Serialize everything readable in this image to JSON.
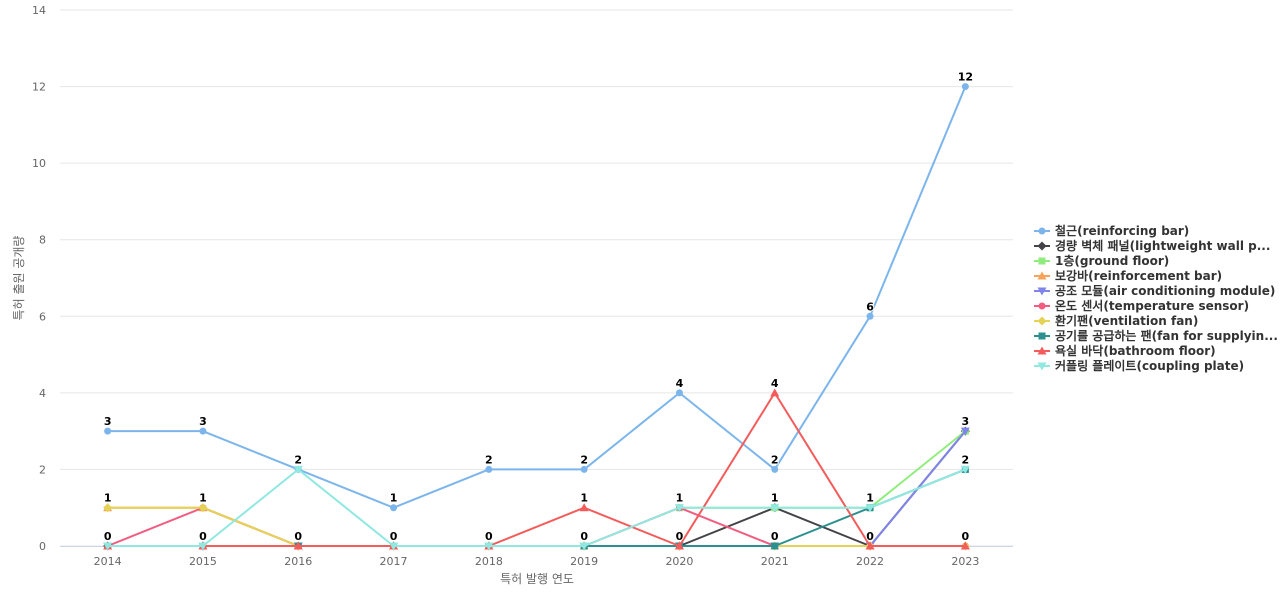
{
  "chart_data": {
    "type": "line",
    "title": "",
    "xlabel": "특허 발행 연도",
    "ylabel": "특허 출원 공개량",
    "ylim": [
      0,
      14
    ],
    "yticks": [
      0,
      2,
      4,
      6,
      8,
      10,
      12,
      14
    ],
    "grid": true,
    "legend_position": "right",
    "categories": [
      "2014",
      "2015",
      "2016",
      "2017",
      "2018",
      "2019",
      "2020",
      "2021",
      "2022",
      "2023"
    ],
    "series": [
      {
        "name": "철근(reinforcing bar)",
        "color": "#7cb5ec",
        "marker": "circle",
        "values": [
          3,
          3,
          2,
          1,
          2,
          2,
          4,
          2,
          6,
          12
        ]
      },
      {
        "name": "경량 벽체 패널(lightweight wall p...",
        "color": "#434348",
        "marker": "diamond",
        "values": [
          0,
          0,
          0,
          0,
          0,
          0,
          0,
          1,
          0,
          3
        ]
      },
      {
        "name": "1층(ground floor)",
        "color": "#90ed7d",
        "marker": "square",
        "values": [
          0,
          0,
          0,
          0,
          0,
          0,
          1,
          1,
          1,
          3
        ]
      },
      {
        "name": "보강바(reinforcement bar)",
        "color": "#f7a35c",
        "marker": "triangle",
        "values": [
          1,
          1,
          0,
          0,
          0,
          0,
          0,
          0,
          0,
          0
        ]
      },
      {
        "name": "공조 모듈(air conditioning module)",
        "color": "#8085e9",
        "marker": "triangle-down",
        "values": [
          0,
          0,
          0,
          0,
          0,
          0,
          0,
          0,
          0,
          3
        ]
      },
      {
        "name": "온도 센서(temperature sensor)",
        "color": "#f15c80",
        "marker": "circle",
        "values": [
          0,
          1,
          0,
          0,
          0,
          0,
          1,
          0,
          0,
          0
        ]
      },
      {
        "name": "환기팬(ventilation fan)",
        "color": "#e4d354",
        "marker": "diamond",
        "values": [
          1,
          1,
          0,
          0,
          0,
          0,
          0,
          0,
          0,
          0
        ]
      },
      {
        "name": "공기를 공급하는 팬(fan for supplyin...",
        "color": "#2b908f",
        "marker": "square",
        "values": [
          0,
          0,
          0,
          0,
          0,
          0,
          0,
          0,
          1,
          2
        ]
      },
      {
        "name": "욕실 바닥(bathroom floor)",
        "color": "#f45b5b",
        "marker": "triangle",
        "values": [
          0,
          0,
          0,
          0,
          0,
          1,
          0,
          4,
          0,
          0
        ]
      },
      {
        "name": "커플링 플레이트(coupling plate)",
        "color": "#91e8e1",
        "marker": "triangle-down",
        "values": [
          0,
          0,
          2,
          0,
          0,
          0,
          1,
          1,
          1,
          2
        ]
      }
    ],
    "data_labels": [
      {
        "category": "2014",
        "value": 3,
        "text": "3"
      },
      {
        "category": "2014",
        "value": 1,
        "text": "1"
      },
      {
        "category": "2014",
        "value": 0,
        "text": "0"
      },
      {
        "category": "2015",
        "value": 3,
        "text": "3"
      },
      {
        "category": "2015",
        "value": 1,
        "text": "1"
      },
      {
        "category": "2015",
        "value": 0,
        "text": "0"
      },
      {
        "category": "2016",
        "value": 2,
        "text": "2"
      },
      {
        "category": "2016",
        "value": 0,
        "text": "0"
      },
      {
        "category": "2017",
        "value": 1,
        "text": "1"
      },
      {
        "category": "2017",
        "value": 0,
        "text": "0"
      },
      {
        "category": "2018",
        "value": 2,
        "text": "2"
      },
      {
        "category": "2018",
        "value": 0,
        "text": "0"
      },
      {
        "category": "2019",
        "value": 2,
        "text": "2"
      },
      {
        "category": "2019",
        "value": 1,
        "text": "1"
      },
      {
        "category": "2019",
        "value": 0,
        "text": "0"
      },
      {
        "category": "2020",
        "value": 4,
        "text": "4"
      },
      {
        "category": "2020",
        "value": 1,
        "text": "1"
      },
      {
        "category": "2020",
        "value": 0,
        "text": "0"
      },
      {
        "category": "2021",
        "value": 4,
        "text": "4"
      },
      {
        "category": "2021",
        "value": 2,
        "text": "2"
      },
      {
        "category": "2021",
        "value": 1,
        "text": "1"
      },
      {
        "category": "2021",
        "value": 0,
        "text": "0"
      },
      {
        "category": "2022",
        "value": 6,
        "text": "6"
      },
      {
        "category": "2022",
        "value": 1,
        "text": "1"
      },
      {
        "category": "2022",
        "value": 0,
        "text": "0"
      },
      {
        "category": "2023",
        "value": 12,
        "text": "12"
      },
      {
        "category": "2023",
        "value": 3,
        "text": "3"
      },
      {
        "category": "2023",
        "value": 2,
        "text": "2"
      },
      {
        "category": "2023",
        "value": 0,
        "text": "0"
      }
    ]
  }
}
